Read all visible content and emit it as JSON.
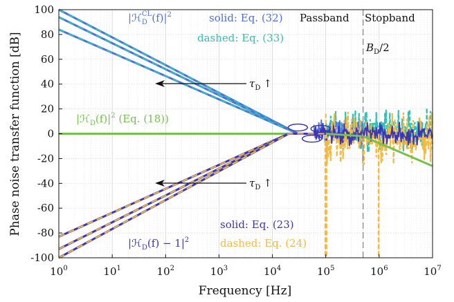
{
  "chart_data": {
    "type": "line",
    "xlabel": "Frequency [Hz]",
    "ylabel": "Phase noise transfer function [dB]",
    "xscale": "log",
    "xlim": [
      1,
      10000000
    ],
    "ylim": [
      -100,
      100
    ],
    "grid": true,
    "x_tick_labels": [
      "10^0",
      "10^1",
      "10^2",
      "10^3",
      "10^4",
      "10^5",
      "10^6",
      "10^7"
    ],
    "y_tick_labels": [
      "100",
      "80",
      "60",
      "40",
      "20",
      "0",
      "-20",
      "-40",
      "-60",
      "-80",
      "-100"
    ],
    "vertical_marker": {
      "x": 500000
    },
    "colors": {
      "hcl_solid": "#4f6fe0",
      "hcl_dashed": "#2ec2b4",
      "hd": "#74c24a",
      "hd1_solid": "#3b35b8",
      "hd1_dashed": "#f5b93d",
      "marker": "#888888",
      "arrow": "#111111"
    },
    "series": [
      {
        "group": "H_CL",
        "x": [
          1,
          30000,
          100000
        ],
        "y": [
          100,
          0,
          0
        ]
      },
      {
        "group": "H_CL",
        "x": [
          1,
          30000,
          100000
        ],
        "y": [
          94,
          0,
          0
        ]
      },
      {
        "group": "H_CL",
        "x": [
          1,
          30000,
          100000
        ],
        "y": [
          84,
          0,
          0
        ]
      },
      {
        "group": "H_D",
        "x": [
          1,
          100000,
          500000,
          10000000
        ],
        "y": [
          0,
          0,
          -2,
          -26
        ]
      },
      {
        "group": "H_D_minus_1",
        "x": [
          1,
          20000,
          100000
        ],
        "y": [
          -83,
          0,
          0
        ]
      },
      {
        "group": "H_D_minus_1",
        "x": [
          1,
          20000,
          100000
        ],
        "y": [
          -93,
          0,
          0
        ]
      },
      {
        "group": "H_D_minus_1",
        "x": [
          1,
          20000,
          100000
        ],
        "y": [
          -100,
          0,
          0
        ]
      }
    ],
    "annotations": {
      "hcl_label": "|ℋ",
      "hcl_sub": "D",
      "hcl_sup": "CL",
      "hcl_rest": "(f)|",
      "hcl_pow": "2",
      "solid_hcl": "solid: Eq. (32)",
      "dashed_hcl": "dashed: Eq. (33)",
      "passband": "Passband",
      "stopband": "Stopband",
      "bd2_b": "B",
      "bd2_sub": "D",
      "bd2_rest": "/2",
      "tau_top": "τ",
      "tau_top_sub": "D",
      "tau_top_arrow": "↑",
      "tau_bot": "τ",
      "tau_bot_sub": "D",
      "tau_bot_arrow": "↑",
      "hd_label": "|ℋ",
      "hd_sub": "D",
      "hd_rest": "(f)|",
      "hd_pow": "2",
      "hd_eq": " (Eq. (18))",
      "solid_hd1": "solid: Eq. (23)",
      "dashed_hd1": "dashed: Eq. (24)",
      "hd1_label": "|ℋ",
      "hd1_sub": "D",
      "hd1_rest": "(f) − 1|",
      "hd1_pow": "2"
    }
  }
}
